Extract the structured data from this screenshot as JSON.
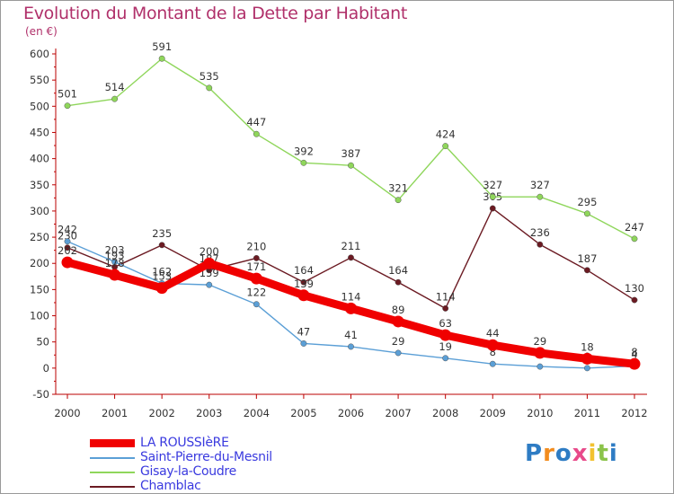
{
  "title": "Evolution du Montant de la Dette par Habitant",
  "unit": "(en €)",
  "brand": {
    "letters": [
      "P",
      "r",
      "o",
      "x",
      "i",
      "t",
      "i"
    ],
    "colors": [
      "#2e7cc4",
      "#f28c1e",
      "#2e7cc4",
      "#e84a8a",
      "#f2c230",
      "#8bc34a",
      "#2e7cc4"
    ]
  },
  "chart_data": {
    "type": "line",
    "title": "Evolution du Montant de la Dette par Habitant",
    "ylabel": "(en €)",
    "xlabel": "",
    "x": [
      "2000",
      "2001",
      "2002",
      "2003",
      "2004",
      "2005",
      "2006",
      "2007",
      "2008",
      "2009",
      "2010",
      "2011",
      "2012"
    ],
    "ylim": [
      -50,
      600
    ],
    "yticks": [
      -50,
      0,
      50,
      100,
      150,
      200,
      250,
      300,
      350,
      400,
      450,
      500,
      550,
      600
    ],
    "grid": false,
    "legend_position": "bottom-left",
    "series": [
      {
        "name": "Chamblac",
        "color": "#6b1a22",
        "values": [
          230,
          193,
          235,
          187,
          210,
          164,
          211,
          164,
          114,
          305,
          236,
          187,
          130
        ]
      },
      {
        "name": "Gisay-la-Coudre",
        "color": "#8fd65b",
        "values": [
          501,
          514,
          591,
          535,
          447,
          392,
          387,
          321,
          424,
          327,
          327,
          295,
          247
        ]
      },
      {
        "name": "Saint-Pierre-du-Mesnil",
        "color": "#5b9fd6",
        "values": [
          242,
          203,
          162,
          159,
          122,
          47,
          41,
          29,
          19,
          8,
          3,
          0,
          4
        ]
      },
      {
        "name": "LA ROUSSIèRE",
        "color": "#f00000",
        "values": [
          202,
          178,
          153,
          200,
          171,
          139,
          114,
          89,
          63,
          44,
          29,
          18,
          8
        ]
      }
    ],
    "legend": [
      "LA ROUSSIèRE",
      "Saint-Pierre-du-Mesnil",
      "Gisay-la-Coudre",
      "Chamblac"
    ]
  }
}
